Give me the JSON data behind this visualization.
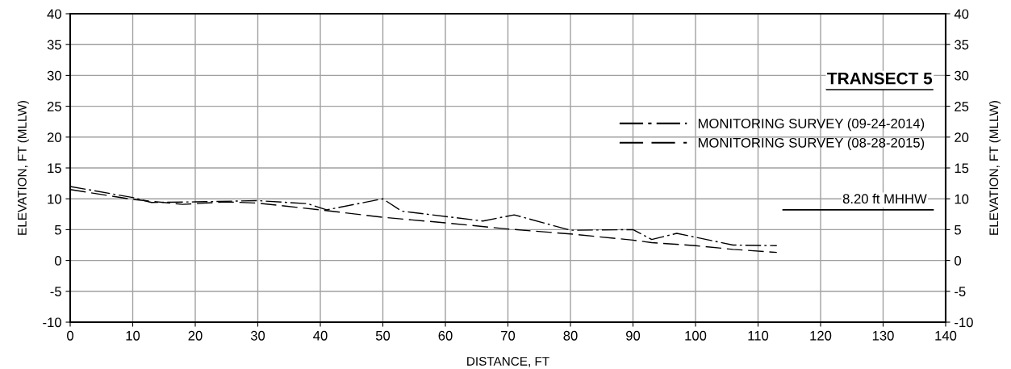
{
  "chart_data": {
    "type": "line",
    "title": "TRANSECT 5",
    "xlabel": "DISTANCE, FT",
    "ylabel": "ELEVATION, FT (MLLW)",
    "y2label": "ELEVATION, FT (MLLW)",
    "xlim": [
      0,
      140
    ],
    "xticks": [
      0,
      10,
      20,
      30,
      40,
      50,
      60,
      70,
      80,
      90,
      100,
      110,
      120,
      130,
      140
    ],
    "ylim": [
      -10,
      40
    ],
    "yticks": [
      -10,
      -5,
      0,
      5,
      10,
      15,
      20,
      25,
      30,
      35,
      40
    ],
    "y2lim": [
      -10,
      40
    ],
    "y2ticks": [
      -10,
      -5,
      0,
      5,
      10,
      15,
      20,
      25,
      30,
      35,
      40
    ],
    "grid": true,
    "legend": "top right",
    "series": [
      {
        "name": "MONITORING SURVEY (09-24-2014)",
        "color": "#000000",
        "line_style": "dashdot",
        "x": [
          0,
          10,
          13,
          20,
          30,
          38,
          41,
          50,
          53,
          66,
          71,
          80,
          90,
          93,
          97,
          106,
          113
        ],
        "values": [
          12,
          10.2,
          9.4,
          9.5,
          9.7,
          9.2,
          8.2,
          10,
          8,
          6.4,
          7.4,
          4.9,
          5,
          3.4,
          4.4,
          2.5,
          2.4
        ]
      },
      {
        "name": "MONITORING SURVEY (08-28-2015)",
        "color": "#000000",
        "line_style": "dashed",
        "x": [
          0,
          10,
          18,
          25,
          30,
          40,
          50,
          60,
          70,
          80,
          90,
          93,
          100,
          106,
          113
        ],
        "values": [
          11.5,
          9.9,
          9.1,
          9.5,
          9.3,
          8.2,
          7,
          6.1,
          5.1,
          4.3,
          3.3,
          2.9,
          2.4,
          1.8,
          1.3
        ]
      }
    ],
    "ref_lines": [
      {
        "axis": "y",
        "value": 8.2,
        "label": "8.20 ft MHHW",
        "color": "#000000"
      }
    ]
  }
}
